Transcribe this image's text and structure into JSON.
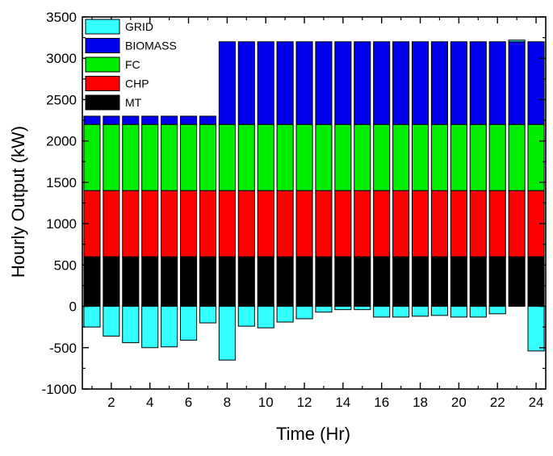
{
  "chart_data": {
    "type": "bar",
    "stacked": true,
    "title": "",
    "xlabel": "Time (Hr)",
    "ylabel": "Hourly Output (kW)",
    "ylim": [
      -1000,
      3500
    ],
    "xlim": [
      0.5,
      24.5
    ],
    "y_ticks": [
      -1000,
      -500,
      0,
      500,
      1000,
      1500,
      2000,
      2500,
      3000,
      3500
    ],
    "x_ticks": [
      2,
      4,
      6,
      8,
      10,
      12,
      14,
      16,
      18,
      20,
      22,
      24
    ],
    "grid": false,
    "legend_position": "top-left",
    "x": [
      1,
      2,
      3,
      4,
      5,
      6,
      7,
      8,
      9,
      10,
      11,
      12,
      13,
      14,
      15,
      16,
      17,
      18,
      19,
      20,
      21,
      22,
      23,
      24
    ],
    "series": [
      {
        "name": "MT",
        "color": "#000000",
        "values": [
          600,
          600,
          600,
          600,
          600,
          600,
          600,
          600,
          600,
          600,
          600,
          600,
          600,
          600,
          600,
          600,
          600,
          600,
          600,
          600,
          600,
          600,
          600,
          600
        ]
      },
      {
        "name": "CHP",
        "color": "#ff0000",
        "values": [
          800,
          800,
          800,
          800,
          800,
          800,
          800,
          800,
          800,
          800,
          800,
          800,
          800,
          800,
          800,
          800,
          800,
          800,
          800,
          800,
          800,
          800,
          800,
          800
        ]
      },
      {
        "name": "FC",
        "color": "#00ee00",
        "values": [
          800,
          800,
          800,
          800,
          800,
          800,
          800,
          800,
          800,
          800,
          800,
          800,
          800,
          800,
          800,
          800,
          800,
          800,
          800,
          800,
          800,
          800,
          800,
          800
        ]
      },
      {
        "name": "BIOMASS",
        "color": "#0000ee",
        "values": [
          100,
          100,
          100,
          100,
          100,
          100,
          100,
          1000,
          1000,
          1000,
          1000,
          1000,
          1000,
          1000,
          1000,
          1000,
          1000,
          1000,
          1000,
          1000,
          1000,
          1000,
          1000,
          1000
        ]
      },
      {
        "name": "GRID",
        "color": "#33ffff",
        "values": [
          -250,
          -360,
          -440,
          -500,
          -490,
          -410,
          -200,
          -650,
          -240,
          -260,
          -190,
          -150,
          -70,
          -40,
          -40,
          -130,
          -130,
          -120,
          -110,
          -130,
          -130,
          -90,
          20,
          -540
        ]
      }
    ],
    "legend_order": [
      "GRID",
      "BIOMASS",
      "FC",
      "CHP",
      "MT"
    ]
  }
}
